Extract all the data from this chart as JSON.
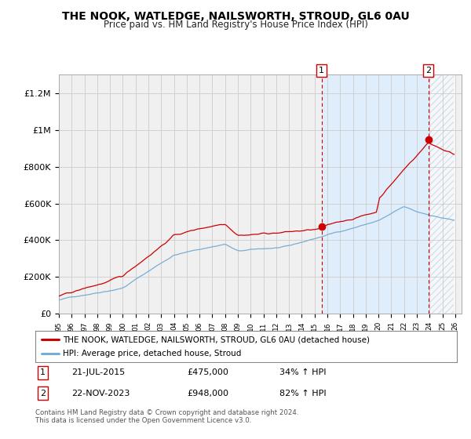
{
  "title": "THE NOOK, WATLEDGE, NAILSWORTH, STROUD, GL6 0AU",
  "subtitle": "Price paid vs. HM Land Registry's House Price Index (HPI)",
  "red_label": "THE NOOK, WATLEDGE, NAILSWORTH, STROUD, GL6 0AU (detached house)",
  "blue_label": "HPI: Average price, detached house, Stroud",
  "annotation1_date": "21-JUL-2015",
  "annotation1_price": "£475,000",
  "annotation1_hpi": "34% ↑ HPI",
  "annotation2_date": "22-NOV-2023",
  "annotation2_price": "£948,000",
  "annotation2_hpi": "82% ↑ HPI",
  "footer": "Contains HM Land Registry data © Crown copyright and database right 2024.\nThis data is licensed under the Open Government Licence v3.0.",
  "red_color": "#cc0000",
  "blue_color": "#7aadd4",
  "vline_color": "#cc0000",
  "grid_color": "#cccccc",
  "bg_color": "#ffffff",
  "plot_bg_color": "#f0f0f0",
  "shade_color": "#ddeeff",
  "ylim": [
    0,
    1300000
  ],
  "yticks": [
    0,
    200000,
    400000,
    600000,
    800000,
    1000000,
    1200000
  ],
  "ytick_labels": [
    "£0",
    "£200K",
    "£400K",
    "£600K",
    "£800K",
    "£1M",
    "£1.2M"
  ],
  "sale1_year": 2015.55,
  "sale2_year": 2023.9,
  "sale1_price": 475000,
  "sale2_price": 948000
}
